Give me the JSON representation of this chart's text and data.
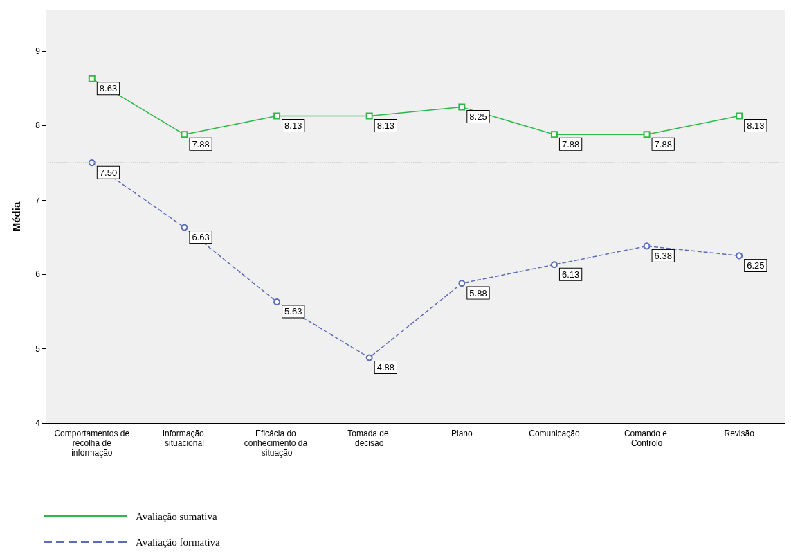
{
  "chart_data": {
    "type": "line",
    "ylabel": "Média",
    "categories": [
      "Comportamentos de recolha de informação",
      "Informação situacional",
      "Eficácia do conhecimento da situação",
      "Tomada de decisão",
      "Plano",
      "Comunicação",
      "Comando e Controlo",
      "Revisão"
    ],
    "series": [
      {
        "name": "Avaliação sumativa",
        "color": "#2db84a",
        "marker": "square",
        "line_style": "solid",
        "values": [
          8.63,
          7.88,
          8.13,
          8.13,
          8.25,
          7.88,
          7.88,
          8.13
        ],
        "value_labels": [
          "8.63",
          "7.88",
          "8.13",
          "8.13",
          "8.25",
          "7.88",
          "7.88",
          "8.13"
        ]
      },
      {
        "name": "Avaliação formativa",
        "color": "#5b6db8",
        "marker": "circle",
        "line_style": "dashed",
        "values": [
          7.5,
          6.63,
          5.63,
          4.88,
          5.88,
          6.13,
          6.38,
          6.25
        ],
        "value_labels": [
          "7.50",
          "6.63",
          "5.63",
          "4.88",
          "5.88",
          "6.13",
          "6.38",
          "6.25"
        ]
      }
    ],
    "ylim": [
      4,
      9.55
    ],
    "yticks": [
      4,
      5,
      6,
      7,
      8,
      9
    ],
    "ref_lines": [
      {
        "axis": "y",
        "value": 7.5,
        "color": "#c8c8c8",
        "line_style": "dotted"
      }
    ],
    "data_labels": true,
    "grid": false,
    "legend": "bottom left"
  }
}
